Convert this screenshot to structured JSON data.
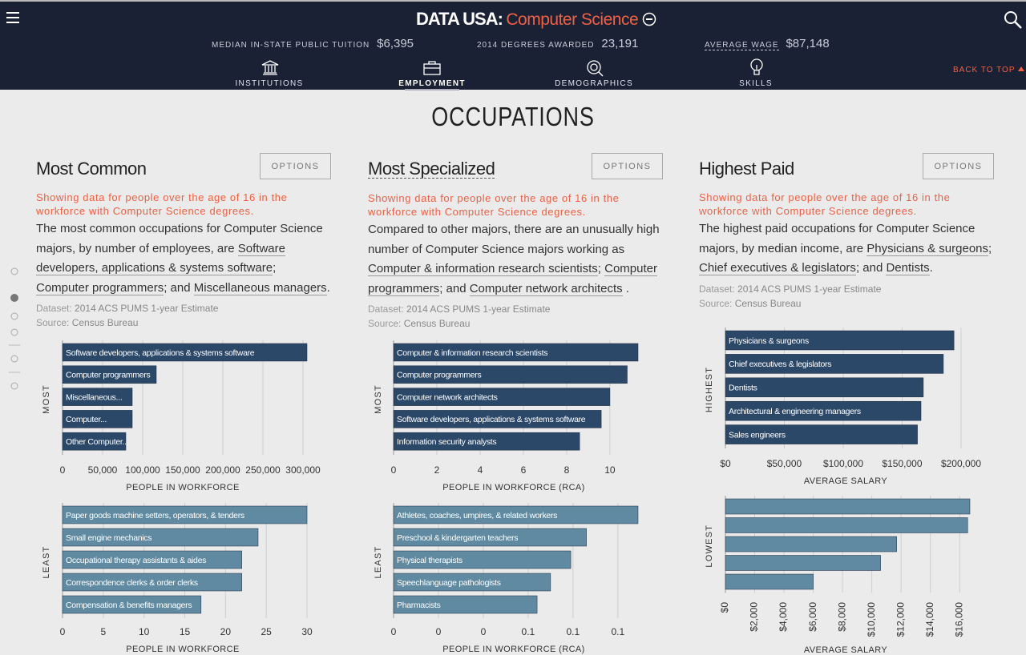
{
  "header": {
    "brand": "DATA USA:",
    "topic": "Computer Science",
    "stats": [
      {
        "label": "MEDIAN IN-STATE PUBLIC TUITION",
        "value": "$6,395"
      },
      {
        "label": "2014 DEGREES AWARDED",
        "value": "23,191"
      },
      {
        "label": "AVERAGE WAGE",
        "value": "$87,148"
      }
    ],
    "nav": [
      "INSTITUTIONS",
      "EMPLOYMENT",
      "DEMOGRAPHICS",
      "SKILLS"
    ],
    "back_to_top": "BACK TO TOP"
  },
  "section_title": "OCCUPATIONS",
  "columns": [
    {
      "title": "Most Common",
      "button": "OPTIONS",
      "notice": "Showing data for people over the age of 16 in the workforce with Computer Science degrees.",
      "description": [
        "The most common occupations for Computer Science majors, by number of employees, are ",
        "Software developers, applications & systems software",
        "; ",
        "Computer programmers",
        "; and ",
        "Miscellaneous managers",
        "."
      ],
      "dataset_label": "Dataset:",
      "dataset": "2014 ACS PUMS 1-year Estimate",
      "source_label": "Source:",
      "source": "Census Bureau"
    },
    {
      "title": "Most Specialized",
      "button": "OPTIONS",
      "notice": "Showing data for people over the age of 16 in the workforce with Computer Science degrees.",
      "description": [
        "Compared to other majors, there are an unusually high number of Computer Science majors working as ",
        "Computer & information research scientists",
        "; ",
        "Computer programmers",
        "; and ",
        "Computer network architects",
        " ."
      ],
      "dataset_label": "Dataset:",
      "dataset": "2014 ACS PUMS 1-year Estimate",
      "source_label": "Source:",
      "source": "Census Bureau"
    },
    {
      "title": "Highest Paid",
      "button": "OPTIONS",
      "notice": "Showing data for people over the age of 16 in the workforce with Computer Science degrees.",
      "description": [
        "The highest paid occupations for Computer Science majors, by median income, are ",
        "Physicians & surgeons",
        "; ",
        "Chief executives & legislators",
        "; and ",
        "Dentists",
        "."
      ],
      "dataset_label": "Dataset:",
      "dataset": "2014 ACS PUMS 1-year Estimate",
      "source_label": "Source:",
      "source": "Census Bureau"
    }
  ],
  "chart_data": [
    {
      "type": "bar",
      "ylabel": "MOST",
      "xlabel": "PEOPLE IN WORKFORCE",
      "color": "#2c4869",
      "grid": true,
      "categories": [
        "Software developers, applications & systems software",
        "Computer programmers",
        "Miscellaneous...",
        "Computer...",
        "Other Computer..."
      ],
      "values": [
        305000,
        117000,
        87000,
        87000,
        79000
      ],
      "xlim": [
        0,
        305000
      ],
      "xticks": [
        0,
        {
          "value": 50000,
          "label": "50,000"
        },
        {
          "value": 100000,
          "label": "100,000"
        },
        {
          "value": 150000,
          "label": "150,000"
        },
        {
          "value": 200000,
          "label": "200,000"
        },
        {
          "value": 250000,
          "label": "250,000"
        },
        {
          "value": 300000,
          "label": "300,000"
        }
      ]
    },
    {
      "type": "bar",
      "ylabel": "LEAST",
      "xlabel": "PEOPLE IN WORKFORCE",
      "color": "#5f8aa1",
      "grid": true,
      "categories": [
        "Paper goods machine setters, operators, & tenders",
        "Small engine mechanics",
        "Occupational therapy assistants & aides",
        "Correspondence clerks & order clerks",
        "Compensation & benefits managers"
      ],
      "values": [
        30,
        24,
        22,
        22,
        17
      ],
      "xlim": [
        0,
        30
      ],
      "xticks": [
        0,
        5,
        10,
        15,
        20,
        25,
        30
      ]
    },
    {
      "type": "bar",
      "ylabel": "MOST",
      "xlabel": "PEOPLE IN WORKFORCE (RCA)",
      "color": "#2c4869",
      "grid": true,
      "categories": [
        "Computer & information research scientists",
        "Computer programmers",
        "Computer network architects",
        "Software developers, applications & systems software",
        "Information security analysts"
      ],
      "values": [
        11.3,
        10.8,
        10.0,
        9.6,
        8.6
      ],
      "xlim": [
        0,
        11.3
      ],
      "xticks": [
        0,
        2,
        4,
        6,
        8,
        10
      ]
    },
    {
      "type": "bar",
      "ylabel": "LEAST",
      "xlabel": "PEOPLE IN WORKFORCE (RCA)",
      "color": "#5f8aa1",
      "grid": true,
      "categories": [
        "Athletes, coaches, umpires, & related workers",
        "Preschool & kindergarten teachers",
        "Physical therapists",
        "Speechlanguage pathologists",
        "Pharmacists"
      ],
      "values": [
        0.109,
        0.086,
        0.079,
        0.07,
        0.064
      ],
      "xlim": [
        0,
        0.109
      ],
      "xticks": [
        0,
        {
          "value": 0.02,
          "label": "0"
        },
        {
          "value": 0.04,
          "label": "0"
        },
        {
          "value": 0.06,
          "label": "0.1"
        },
        {
          "value": 0.08,
          "label": "0.1"
        },
        {
          "value": 0.1,
          "label": "0.1"
        }
      ]
    },
    {
      "type": "bar",
      "ylabel": "HIGHEST",
      "xlabel": "AVERAGE SALARY",
      "color": "#2c4869",
      "grid": true,
      "categories": [
        "Physicians & surgeons",
        "Chief executives & legislators",
        "Dentists",
        "Architectural & engineering managers",
        "Sales engineers"
      ],
      "values": [
        194000,
        185000,
        168000,
        166000,
        163000
      ],
      "xlim": [
        0,
        207500
      ],
      "xticks": [
        {
          "value": 0,
          "label": "$0"
        },
        {
          "value": 50000,
          "label": "$50,000"
        },
        {
          "value": 100000,
          "label": "$100,000"
        },
        {
          "value": 150000,
          "label": "$150,000"
        },
        {
          "value": 200000,
          "label": "$200,000"
        }
      ]
    },
    {
      "type": "bar",
      "ylabel": "LOWEST",
      "xlabel": "AVERAGE SALARY",
      "color": "#5f8aa1",
      "grid": true,
      "categories": [
        null,
        null,
        null,
        null,
        null
      ],
      "values": [
        16700,
        16550,
        11700,
        10600,
        6000
      ],
      "xlim": [
        0,
        16700
      ],
      "xticks": [
        {
          "value": 0,
          "label": "$0"
        },
        {
          "value": 2000,
          "label": "$2,000"
        },
        {
          "value": 4000,
          "label": "$4,000"
        },
        {
          "value": 6000,
          "label": "$6,000"
        },
        {
          "value": 8000,
          "label": "$8,000"
        },
        {
          "value": 10000,
          "label": "$10,000"
        },
        {
          "value": 12000,
          "label": "$12,000"
        },
        {
          "value": 14000,
          "label": "$14,000"
        },
        {
          "value": 16000,
          "label": "$16,000"
        }
      ]
    }
  ]
}
